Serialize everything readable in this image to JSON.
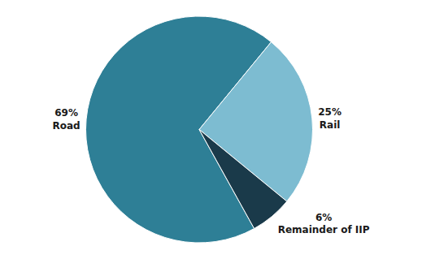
{
  "chart_data": {
    "type": "pie",
    "categories": [
      "Road",
      "Rail",
      "Remainder of IIP"
    ],
    "values": [
      69,
      25,
      6
    ],
    "value_labels": [
      "69%",
      "25%",
      "6%"
    ],
    "colors": [
      "#2e7f96",
      "#7dbcd1",
      "#1a3a4a"
    ],
    "data_labels": true
  }
}
